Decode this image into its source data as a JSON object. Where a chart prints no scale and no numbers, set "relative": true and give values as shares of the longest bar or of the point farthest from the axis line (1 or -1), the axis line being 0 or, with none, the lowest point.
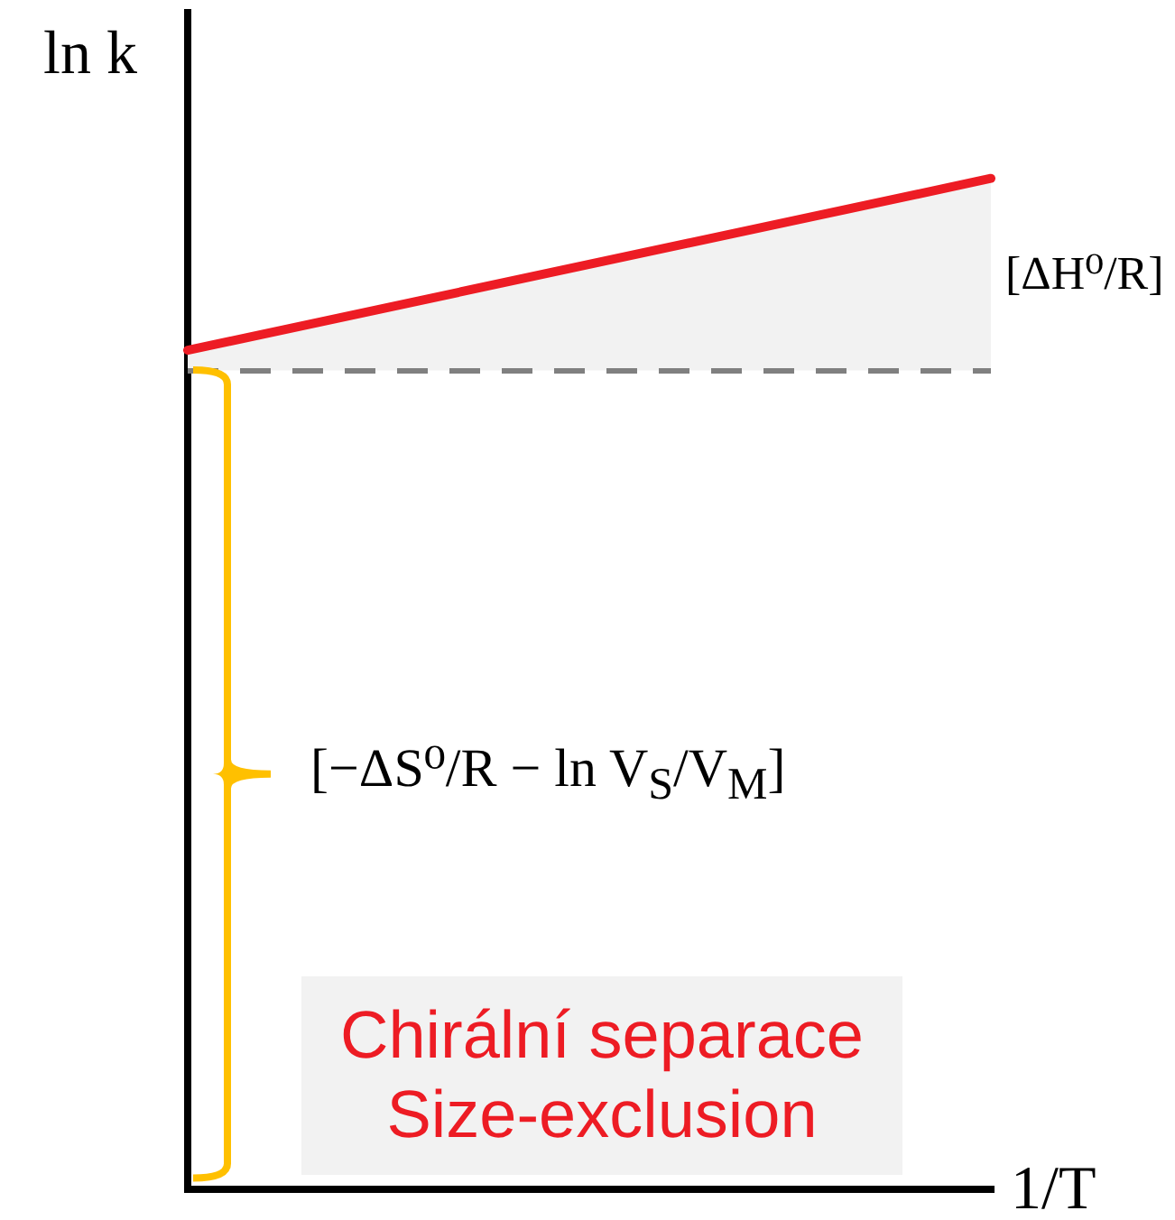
{
  "chart_data": {
    "type": "line",
    "relative": true,
    "xlabel": "1/T",
    "ylabel": "ln k",
    "categories": [
      null,
      null
    ],
    "series": [
      {
        "color": "#ed1c24",
        "values": [
          0.83,
          1
        ],
        "lower": [
          0.81,
          0.81
        ],
        "upper": [
          0.83,
          1
        ]
      }
    ],
    "ref_lines": [
      {
        "axis": "y",
        "value": 0.81,
        "color": "#808080",
        "line_style": "dashed"
      }
    ],
    "marker": "none",
    "line_style": "solid",
    "annotations": [
      "[ΔH⁰/R]",
      "[−ΔS⁰/R − ln V$_{S}$/V$_{M}$]",
      "Chirální separace",
      "Size-exclusion"
    ]
  }
}
